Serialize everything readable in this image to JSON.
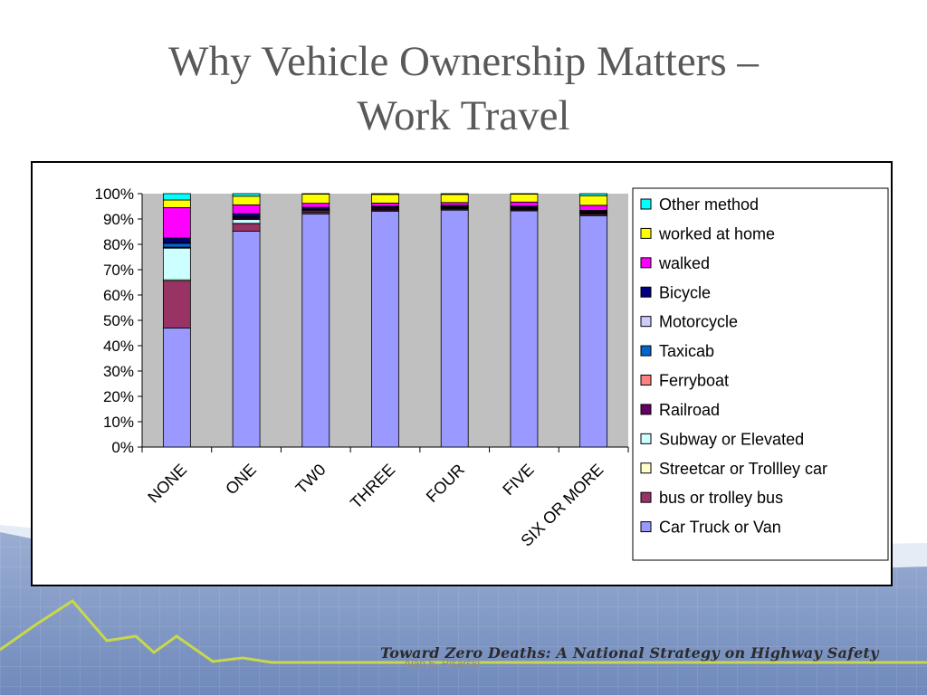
{
  "slide": {
    "title_line1": "Why Vehicle Ownership Matters –",
    "title_line2": "Work Travel",
    "footer": "Toward Zero Deaths: A National Strategy on Highway Safety",
    "footer_author": "Alan E. Pisarski"
  },
  "colors": {
    "title": "#595959",
    "plot_background": "#c0c0c0",
    "band_light": "#e6ecf5",
    "band_dark": "#7f97c3",
    "mountain_line": "#c8d84a"
  },
  "chart_data": {
    "type": "bar",
    "stacked": true,
    "percent_stacked": true,
    "title": "",
    "xlabel": "",
    "ylabel": "",
    "ylim": [
      0,
      100
    ],
    "y_ticks": [
      "0%",
      "10%",
      "20%",
      "30%",
      "40%",
      "50%",
      "60%",
      "70%",
      "80%",
      "90%",
      "100%"
    ],
    "categories": [
      "NONE",
      "ONE",
      "TW0",
      "THREE",
      "FOUR",
      "FIVE",
      "SIX OR MORE"
    ],
    "grid": false,
    "legend_position": "right",
    "series": [
      {
        "name": "Car Truck or Van",
        "color": "#9999ff",
        "values": [
          47,
          85,
          92,
          93,
          93.5,
          93,
          91.5
        ]
      },
      {
        "name": "bus or trolley bus",
        "color": "#993366",
        "values": [
          18.5,
          3,
          0.7,
          0.5,
          0.4,
          0.4,
          0.5
        ]
      },
      {
        "name": "Streetcar or Trollley car",
        "color": "#ffffcc",
        "values": [
          0.5,
          0.1,
          0.1,
          0.1,
          0.1,
          0.1,
          0.1
        ]
      },
      {
        "name": "Subway or Elevated",
        "color": "#ccffff",
        "values": [
          12.5,
          1.5,
          0.4,
          0.3,
          0.3,
          0.3,
          0.3
        ]
      },
      {
        "name": "Railroad",
        "color": "#660066",
        "values": [
          0.3,
          0.5,
          0.4,
          0.4,
          0.3,
          0.3,
          0.3
        ]
      },
      {
        "name": "Ferryboat",
        "color": "#ff8080",
        "values": [
          0.1,
          0.1,
          0.1,
          0.1,
          0.1,
          0.1,
          0.1
        ]
      },
      {
        "name": "Taxicab",
        "color": "#0066cc",
        "values": [
          1.5,
          0.3,
          0.1,
          0.1,
          0.1,
          0.1,
          0.1
        ]
      },
      {
        "name": "Motorcycle",
        "color": "#ccccff",
        "values": [
          0.3,
          0.2,
          0.2,
          0.2,
          0.2,
          0.2,
          0.2
        ]
      },
      {
        "name": "Bicycle",
        "color": "#000080",
        "values": [
          1.8,
          1.2,
          0.6,
          0.4,
          0.4,
          0.4,
          0.5
        ]
      },
      {
        "name": "walked",
        "color": "#ff00ff",
        "values": [
          12,
          3.5,
          1.6,
          1.2,
          1.1,
          1.6,
          2
        ]
      },
      {
        "name": "worked at home",
        "color": "#ffff00",
        "values": [
          3,
          3.4,
          3.6,
          3.4,
          3.2,
          3.1,
          3.8
        ]
      },
      {
        "name": "Other method",
        "color": "#00ffff",
        "values": [
          2.5,
          1,
          0.2,
          0.3,
          0.3,
          0.2,
          0.8
        ]
      }
    ]
  }
}
